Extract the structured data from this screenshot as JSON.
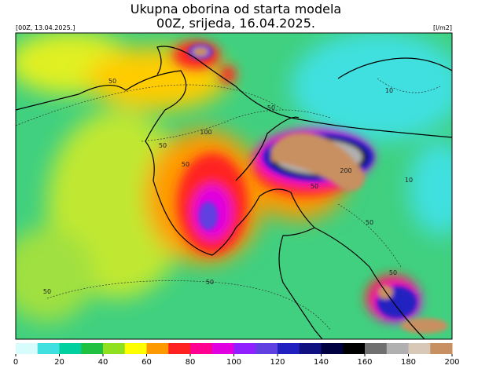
{
  "header": {
    "title": [
      "Ukupna oborina od starta modela",
      "00Z, srijeda, 16.04.2025."
    ],
    "run_label": "[00Z, 13.04.2025.]",
    "unit_label": "[l/m2]"
  },
  "map": {
    "contour_labels": [
      50,
      50,
      50,
      100,
      50,
      50,
      50,
      50,
      200,
      50,
      50,
      10,
      10
    ]
  },
  "colorbar": {
    "range": [
      0,
      200
    ],
    "ticks": [
      0,
      20,
      40,
      60,
      80,
      100,
      120,
      140,
      160,
      180,
      200
    ],
    "colors": [
      "#d8fbfb",
      "#40e0e0",
      "#00d0a0",
      "#20c040",
      "#90e020",
      "#ffff00",
      "#ff9900",
      "#ff2020",
      "#ff0090",
      "#e000e0",
      "#9020ff",
      "#6040e0",
      "#2020c0",
      "#101080",
      "#000040",
      "#000000",
      "#707070",
      "#b0b0b0",
      "#d8c8b8",
      "#c89060"
    ]
  }
}
